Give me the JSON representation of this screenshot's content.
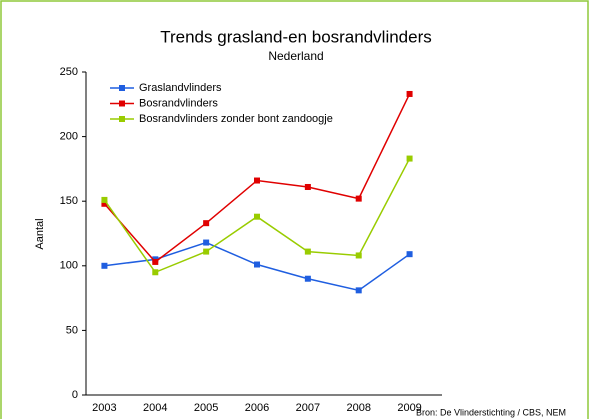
{
  "chart_data": {
    "type": "line",
    "title": "Trends grasland-en bosrandvlinders",
    "subtitle": "Nederland",
    "y_label": "Aantal",
    "source": "Bron: De Vlinderstichting / CBS, NEM",
    "categories": [
      "2003",
      "2004",
      "2005",
      "2006",
      "2007",
      "2008",
      "2009"
    ],
    "series": [
      {
        "name": "Graslandvlinders",
        "color": "#1f5ee0",
        "values": [
          100,
          105,
          118,
          101,
          90,
          81,
          109
        ]
      },
      {
        "name": "Bosrandvlinders",
        "color": "#e00000",
        "values": [
          148,
          103,
          133,
          166,
          161,
          152,
          233
        ]
      },
      {
        "name": "Bosrandvlinders zonder bont zandoogje",
        "color": "#99cc00",
        "values": [
          151,
          95,
          111,
          138,
          111,
          108,
          183
        ]
      }
    ],
    "ylim": [
      0,
      250
    ],
    "yticks": [
      0,
      50,
      100,
      150,
      200,
      250
    ],
    "grid": false,
    "legend": "top-left"
  }
}
